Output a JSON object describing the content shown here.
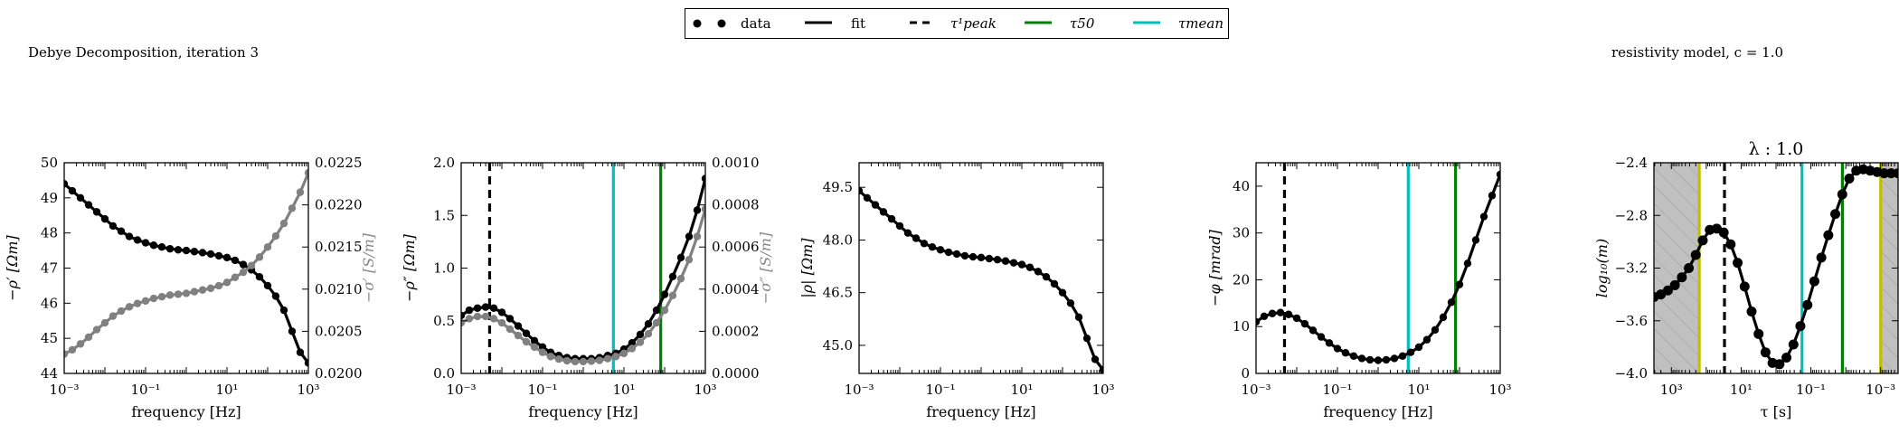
{
  "figure": {
    "title_left": "Debye Decomposition, iteration 3",
    "title_right": "resistivity model, c = 1.0"
  },
  "legend": {
    "items": [
      {
        "label": "data",
        "style": "markers",
        "color": "#000000"
      },
      {
        "label": "fit",
        "style": "solid",
        "color": "#000000"
      },
      {
        "label": "τ¹peak",
        "style": "dashed",
        "color": "#000000"
      },
      {
        "label": "τ50",
        "style": "solid",
        "color": "#008000"
      },
      {
        "label": "τmean",
        "style": "solid",
        "color": "#00bfbf"
      }
    ]
  },
  "chart_data": [
    {
      "type": "line",
      "xlabel": "frequency [Hz]",
      "ylabel": "−ρ′ [Ωm]",
      "ylabel_right": "−σ′ [S/m]",
      "x_scale": "log",
      "xlim": [
        0.001,
        1000
      ],
      "ylim": [
        44,
        50
      ],
      "ylim_right": [
        0.02,
        0.0225
      ],
      "x_ticks": [
        "10⁻³",
        "10⁻¹",
        "10¹",
        "10³"
      ],
      "y_ticks": [
        "44",
        "45",
        "46",
        "47",
        "48",
        "49",
        "50"
      ],
      "y_ticks_right": [
        "0.0200",
        "0.0205",
        "0.0210",
        "0.0215",
        "0.0220",
        "0.0225"
      ],
      "series": [
        {
          "axis": "left",
          "color": "#000000",
          "x": [
            0.001,
            0.00158,
            0.00251,
            0.00398,
            0.00631,
            0.01,
            0.0158,
            0.0251,
            0.0398,
            0.0631,
            0.1,
            0.158,
            0.251,
            0.398,
            0.631,
            1,
            1.58,
            2.51,
            3.98,
            6.31,
            10,
            15.8,
            25.1,
            39.8,
            63.1,
            100,
            158,
            251,
            398,
            631,
            1000
          ],
          "y": [
            49.4,
            49.2,
            49.0,
            48.8,
            48.6,
            48.4,
            48.2,
            48.05,
            47.9,
            47.8,
            47.72,
            47.65,
            47.6,
            47.55,
            47.52,
            47.5,
            47.47,
            47.44,
            47.4,
            47.35,
            47.3,
            47.22,
            47.1,
            46.95,
            46.75,
            46.5,
            46.2,
            45.8,
            45.2,
            44.6,
            44.3
          ]
        },
        {
          "axis": "right",
          "color": "#808080",
          "x": [
            0.001,
            0.00158,
            0.00251,
            0.00398,
            0.00631,
            0.01,
            0.0158,
            0.0251,
            0.0398,
            0.0631,
            0.1,
            0.158,
            0.251,
            0.398,
            0.631,
            1,
            1.58,
            2.51,
            3.98,
            6.31,
            10,
            15.8,
            25.1,
            39.8,
            63.1,
            100,
            158,
            251,
            398,
            631,
            1000
          ],
          "y": [
            0.02023,
            0.02028,
            0.02035,
            0.02043,
            0.02052,
            0.0206,
            0.02068,
            0.02074,
            0.02079,
            0.02083,
            0.02086,
            0.02089,
            0.02091,
            0.02093,
            0.02094,
            0.02095,
            0.02097,
            0.02099,
            0.02101,
            0.02104,
            0.02108,
            0.02114,
            0.0212,
            0.02128,
            0.02138,
            0.0215,
            0.02163,
            0.02178,
            0.02196,
            0.02215,
            0.02238
          ]
        }
      ],
      "vlines": []
    },
    {
      "type": "line",
      "xlabel": "frequency [Hz]",
      "ylabel": "−ρ″ [Ωm]",
      "ylabel_right": "−σ″ [S/m]",
      "x_scale": "log",
      "xlim": [
        0.001,
        1000
      ],
      "ylim": [
        0,
        2.0
      ],
      "ylim_right": [
        0,
        0.001
      ],
      "x_ticks": [
        "10⁻³",
        "10⁻¹",
        "10¹",
        "10³"
      ],
      "y_ticks": [
        "0.0",
        "0.5",
        "1.0",
        "1.5",
        "2.0"
      ],
      "y_ticks_right": [
        "0.0000",
        "0.0002",
        "0.0004",
        "0.0006",
        "0.0008",
        "0.0010"
      ],
      "series": [
        {
          "axis": "left",
          "color": "#000000",
          "x": [
            0.001,
            0.00158,
            0.00251,
            0.00398,
            0.00631,
            0.01,
            0.0158,
            0.0251,
            0.0398,
            0.0631,
            0.1,
            0.158,
            0.251,
            0.398,
            0.631,
            1,
            1.58,
            2.51,
            3.98,
            6.31,
            10,
            15.8,
            25.1,
            39.8,
            63.1,
            100,
            158,
            251,
            398,
            631,
            1000
          ],
          "y": [
            0.55,
            0.6,
            0.62,
            0.63,
            0.62,
            0.58,
            0.52,
            0.45,
            0.38,
            0.31,
            0.25,
            0.2,
            0.17,
            0.15,
            0.14,
            0.14,
            0.14,
            0.15,
            0.17,
            0.19,
            0.23,
            0.29,
            0.37,
            0.47,
            0.6,
            0.75,
            0.92,
            1.1,
            1.3,
            1.55,
            1.85
          ]
        },
        {
          "axis": "right",
          "color": "#808080",
          "x": [
            0.001,
            0.00158,
            0.00251,
            0.00398,
            0.00631,
            0.01,
            0.0158,
            0.0251,
            0.0398,
            0.0631,
            0.1,
            0.158,
            0.251,
            0.398,
            0.631,
            1,
            1.58,
            2.51,
            3.98,
            6.31,
            10,
            15.8,
            25.1,
            39.8,
            63.1,
            100,
            158,
            251,
            398,
            631,
            1000
          ],
          "y": [
            0.00024,
            0.00026,
            0.00027,
            0.00027,
            0.00026,
            0.00024,
            0.00021,
            0.00018,
            0.00015,
            0.000125,
            0.0001,
            8e-05,
            6.8e-05,
            6e-05,
            5.6e-05,
            5.6e-05,
            5.8e-05,
            6.2e-05,
            7e-05,
            8e-05,
            9.5e-05,
            0.000118,
            0.000148,
            0.000188,
            0.00024,
            0.0003,
            0.00037,
            0.00045,
            0.00054,
            0.00065,
            0.00078
          ]
        }
      ],
      "vlines": [
        {
          "x": 0.005,
          "color": "#000000",
          "style": "dashed"
        },
        {
          "x": 5.5,
          "color": "#00bfbf",
          "style": "solid"
        },
        {
          "x": 80,
          "color": "#008000",
          "style": "solid"
        }
      ]
    },
    {
      "type": "line",
      "xlabel": "frequency [Hz]",
      "ylabel": "|ρ| [Ωm]",
      "x_scale": "log",
      "xlim": [
        0.001,
        1000
      ],
      "ylim": [
        44.2,
        50.2
      ],
      "x_ticks": [
        "10⁻³",
        "10⁻¹",
        "10¹",
        "10³"
      ],
      "y_ticks": [
        "45.0",
        "46.5",
        "48.0",
        "49.5"
      ],
      "series": [
        {
          "axis": "left",
          "color": "#000000",
          "x": [
            0.001,
            0.00158,
            0.00251,
            0.00398,
            0.00631,
            0.01,
            0.0158,
            0.0251,
            0.0398,
            0.0631,
            0.1,
            0.158,
            0.251,
            0.398,
            0.631,
            1,
            1.58,
            2.51,
            3.98,
            6.31,
            10,
            15.8,
            25.1,
            39.8,
            63.1,
            100,
            158,
            251,
            398,
            631,
            1000
          ],
          "y": [
            49.4,
            49.2,
            49.0,
            48.8,
            48.6,
            48.4,
            48.2,
            48.05,
            47.9,
            47.8,
            47.72,
            47.65,
            47.6,
            47.55,
            47.52,
            47.5,
            47.47,
            47.44,
            47.4,
            47.35,
            47.3,
            47.22,
            47.1,
            46.95,
            46.75,
            46.5,
            46.2,
            45.8,
            45.2,
            44.6,
            44.3
          ]
        }
      ],
      "vlines": []
    },
    {
      "type": "line",
      "xlabel": "frequency [Hz]",
      "ylabel": "−φ [mrad]",
      "x_scale": "log",
      "xlim": [
        0.001,
        1000
      ],
      "ylim": [
        0,
        45
      ],
      "x_ticks": [
        "10⁻³",
        "10⁻¹",
        "10¹",
        "10³"
      ],
      "y_ticks": [
        "0",
        "10",
        "20",
        "30",
        "40"
      ],
      "series": [
        {
          "axis": "left",
          "color": "#000000",
          "x": [
            0.001,
            0.00158,
            0.00251,
            0.00398,
            0.00631,
            0.01,
            0.0158,
            0.0251,
            0.0398,
            0.0631,
            0.1,
            0.158,
            0.251,
            0.398,
            0.631,
            1,
            1.58,
            2.51,
            3.98,
            6.31,
            10,
            15.8,
            25.1,
            39.8,
            63.1,
            100,
            158,
            251,
            398,
            631,
            1000
          ],
          "y": [
            11,
            12.2,
            12.8,
            13,
            12.6,
            11.8,
            10.6,
            9.2,
            7.8,
            6.5,
            5.3,
            4.4,
            3.7,
            3.2,
            2.9,
            2.8,
            2.9,
            3.2,
            3.7,
            4.5,
            5.6,
            7.2,
            9.3,
            12,
            15.2,
            19,
            23.5,
            28.5,
            33.5,
            38,
            42.5
          ]
        }
      ],
      "vlines": [
        {
          "x": 0.005,
          "color": "#000000",
          "style": "dashed"
        },
        {
          "x": 5.5,
          "color": "#00bfbf",
          "style": "solid"
        },
        {
          "x": 80,
          "color": "#008000",
          "style": "solid"
        }
      ]
    },
    {
      "type": "line",
      "title": "λ : 1.0",
      "xlabel": "τ [s]",
      "ylabel": "log₁₀(m)",
      "x_scale": "log",
      "x_reversed": true,
      "xlim": [
        3162,
        0.000316
      ],
      "ylim": [
        -4.0,
        -2.4
      ],
      "x_ticks": [
        "10³",
        "10¹",
        "10⁻¹",
        "10⁻³"
      ],
      "y_ticks": [
        "−4.0",
        "−3.6",
        "−3.2",
        "−2.8",
        "−2.4"
      ],
      "shaded_regions": [
        {
          "from": 3162,
          "to": 159
        },
        {
          "from": 0.001,
          "to": 0.000316
        }
      ],
      "series": [
        {
          "axis": "left",
          "color": "#000000",
          "x": [
            3162,
            2000,
            1259,
            794,
            501,
            316,
            200,
            126,
            79.4,
            50.1,
            31.6,
            20,
            12.6,
            7.94,
            5.01,
            3.16,
            2,
            1.26,
            0.794,
            0.501,
            0.316,
            0.2,
            0.126,
            0.0794,
            0.0501,
            0.0316,
            0.02,
            0.0126,
            0.00794,
            0.00501,
            0.00316,
            0.002,
            0.00126,
            0.000794,
            0.000501,
            0.000316
          ],
          "y": [
            -3.42,
            -3.4,
            -3.37,
            -3.33,
            -3.27,
            -3.2,
            -3.1,
            -2.99,
            -2.91,
            -2.9,
            -2.93,
            -3.02,
            -3.16,
            -3.34,
            -3.53,
            -3.7,
            -3.84,
            -3.92,
            -3.93,
            -3.88,
            -3.78,
            -3.64,
            -3.48,
            -3.3,
            -3.12,
            -2.95,
            -2.79,
            -2.64,
            -2.52,
            -2.46,
            -2.45,
            -2.46,
            -2.47,
            -2.48,
            -2.48,
            -2.48
          ]
        }
      ],
      "vlines": [
        {
          "x": 159,
          "color": "#bfbf00",
          "style": "solid"
        },
        {
          "x": 30,
          "color": "#000000",
          "style": "dashed"
        },
        {
          "x": 0.18,
          "color": "#00bfbf",
          "style": "solid"
        },
        {
          "x": 0.0125,
          "color": "#008000",
          "style": "solid"
        },
        {
          "x": 0.001,
          "color": "#bfbf00",
          "style": "solid"
        }
      ]
    }
  ]
}
